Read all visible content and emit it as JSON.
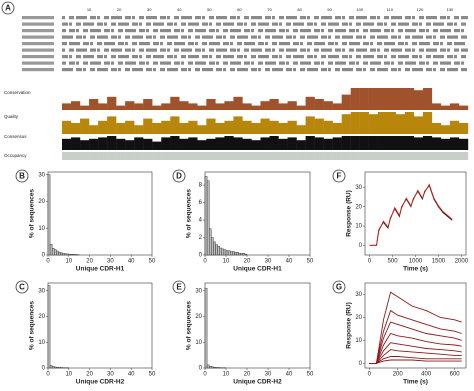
{
  "chart_data": [
    {
      "type": "track",
      "label": "A",
      "xlim": [
        1,
        136
      ],
      "xticks": [
        10,
        20,
        30,
        40,
        50,
        60,
        70,
        80,
        90,
        100,
        110,
        120,
        130
      ],
      "ylim": [
        0,
        10
      ],
      "tracks": [
        {
          "name": "Conservation",
          "color": "#a0522d",
          "values": [
            3,
            4,
            2,
            5,
            3,
            6,
            2,
            4,
            3,
            5,
            2,
            3,
            6,
            4,
            3,
            2,
            5,
            3,
            4,
            6,
            3,
            2,
            4,
            5,
            3,
            4,
            2,
            6,
            5,
            4,
            3,
            7,
            10,
            10,
            10,
            10,
            10,
            10,
            10,
            9,
            10,
            3,
            2,
            3,
            2
          ]
        },
        {
          "name": "Quality",
          "color": "#b8860b",
          "values": [
            6,
            5,
            7,
            4,
            6,
            8,
            5,
            6,
            4,
            7,
            5,
            6,
            8,
            5,
            6,
            4,
            7,
            5,
            6,
            8,
            6,
            5,
            7,
            6,
            5,
            6,
            4,
            8,
            7,
            6,
            5,
            9,
            10,
            10,
            9,
            10,
            10,
            9,
            10,
            8,
            10,
            5,
            4,
            6,
            5
          ]
        },
        {
          "name": "Consensus",
          "color": "#111111",
          "values": [
            8,
            9,
            7,
            8,
            9,
            10,
            8,
            7,
            9,
            8,
            6,
            9,
            10,
            8,
            9,
            7,
            8,
            9,
            10,
            9,
            8,
            7,
            9,
            10,
            8,
            9,
            7,
            10,
            9,
            8,
            9,
            10,
            10,
            10,
            10,
            10,
            10,
            10,
            10,
            9,
            10,
            9,
            8,
            9,
            8
          ]
        },
        {
          "name": "Occupancy",
          "color": "#c8cfc8",
          "values": [
            10,
            10,
            10,
            10,
            10,
            10,
            10,
            10,
            10,
            10,
            10,
            10,
            10,
            10,
            10,
            10,
            10,
            10,
            10,
            10,
            10,
            10,
            10,
            10,
            10,
            10,
            10,
            10,
            10,
            10,
            10,
            10,
            10,
            10,
            10,
            10,
            10,
            10,
            10,
            10,
            10,
            10,
            10,
            10,
            10
          ]
        }
      ]
    },
    {
      "type": "histogram",
      "label": "B",
      "xlabel": "Unique CDR-H1",
      "ylabel": "% of sequences",
      "color": "#bdbdbd",
      "bins": [
        0,
        1,
        2,
        3,
        4,
        5,
        6,
        7,
        8,
        9,
        10,
        11,
        12,
        13,
        14,
        15
      ],
      "values": [
        30,
        4,
        2.5,
        2,
        1.5,
        1,
        0.8,
        0.6,
        0.5,
        0.4,
        0.3,
        0.3,
        0.2,
        0.2,
        0.1
      ],
      "xlim": [
        0,
        50
      ],
      "xticks": [
        0,
        10,
        20,
        30,
        40,
        50
      ],
      "ylim": [
        0,
        31
      ],
      "yticks": [
        0,
        10,
        20,
        30
      ]
    },
    {
      "type": "histogram",
      "label": "C",
      "xlabel": "Unique CDR-H2",
      "ylabel": "% of sequences",
      "color": "#bdbdbd",
      "bins": [
        0,
        1,
        2,
        3,
        4,
        5,
        6,
        7,
        8,
        9,
        10
      ],
      "values": [
        32,
        1,
        0.6,
        0.4,
        0.3,
        0.2,
        0.2,
        0.1,
        0.1,
        0.1
      ],
      "xlim": [
        0,
        50
      ],
      "xticks": [
        0,
        10,
        20,
        30,
        40,
        50
      ],
      "ylim": [
        0,
        33
      ],
      "yticks": [
        0,
        10,
        20,
        30
      ]
    },
    {
      "type": "histogram",
      "label": "D",
      "xlabel": "Unique CDR-H1",
      "ylabel": "% of sequences",
      "color": "#bdbdbd",
      "bins": [
        0,
        1,
        2,
        3,
        4,
        5,
        6,
        7,
        8,
        9,
        10,
        11,
        12,
        13,
        14,
        15,
        16,
        17,
        18,
        19,
        20
      ],
      "values": [
        9,
        8.5,
        3,
        2,
        1.5,
        1.2,
        1,
        0.8,
        0.7,
        0.6,
        0.5,
        0.5,
        0.4,
        0.4,
        0.3,
        0.3,
        0.2,
        0.2,
        0.2,
        0.1
      ],
      "xlim": [
        0,
        50
      ],
      "xticks": [
        0,
        10,
        20,
        30,
        40,
        50
      ],
      "ylim": [
        0,
        9.5
      ],
      "yticks": [
        0,
        2,
        4,
        6,
        8
      ]
    },
    {
      "type": "histogram",
      "label": "E",
      "xlabel": "Unique CDR-H2",
      "ylabel": "% of sequences",
      "color": "#bdbdbd",
      "bins": [
        0,
        1,
        2,
        3,
        4,
        5,
        6,
        7,
        8,
        9,
        10
      ],
      "values": [
        31,
        1.2,
        0.7,
        0.5,
        0.3,
        0.2,
        0.2,
        0.1,
        0.1,
        0.1
      ],
      "xlim": [
        0,
        50
      ],
      "xticks": [
        0,
        10,
        20,
        30,
        40,
        50
      ],
      "ylim": [
        0,
        33
      ],
      "yticks": [
        0,
        10,
        20,
        30
      ]
    },
    {
      "type": "line",
      "label": "F",
      "xlabel": "Time (s)",
      "ylabel": "Response (RU)",
      "x": [
        0,
        150,
        200,
        300,
        400,
        450,
        550,
        650,
        700,
        800,
        900,
        950,
        1050,
        1150,
        1200,
        1300,
        1400,
        1500,
        1600,
        1700,
        1800
      ],
      "series": [
        {
          "color": "#111111",
          "values": [
            0,
            0,
            8,
            12,
            9,
            14,
            19,
            15,
            20,
            24,
            20,
            24,
            28,
            24,
            28,
            31,
            24,
            20,
            17,
            15,
            13
          ]
        },
        {
          "color": "#d62020",
          "values": [
            0,
            0,
            7.5,
            12.5,
            9.5,
            13.5,
            19.5,
            15.5,
            19.5,
            24.5,
            20.5,
            23.5,
            28.5,
            24.5,
            27.5,
            31.5,
            24.5,
            20.5,
            17.5,
            15.5,
            13.5
          ]
        }
      ],
      "xlim": [
        -100,
        2100
      ],
      "xticks": [
        0,
        500,
        1000,
        1500,
        2000
      ],
      "ylim": [
        -5,
        38
      ],
      "yticks": [
        0,
        10,
        20,
        30
      ]
    },
    {
      "type": "line",
      "label": "G",
      "xlabel": "Time (s)",
      "ylabel": "Response (RU)",
      "x": [
        0,
        50,
        100,
        150,
        200,
        300,
        400,
        500,
        600,
        650
      ],
      "series": [
        {
          "color": "#8b1a1a",
          "values": [
            0,
            0,
            19,
            31,
            29,
            25,
            23,
            20,
            19,
            18
          ]
        },
        {
          "color": "#8b1a1a",
          "values": [
            0,
            0,
            14,
            23,
            21,
            19,
            17,
            15,
            14,
            13
          ]
        },
        {
          "color": "#8b1a1a",
          "values": [
            0,
            0,
            11,
            18,
            17,
            15,
            13,
            12,
            11,
            10
          ]
        },
        {
          "color": "#8b1a1a",
          "values": [
            0,
            0,
            8,
            13,
            12,
            11,
            9.5,
            8.5,
            8,
            7.5
          ]
        },
        {
          "color": "#8b1a1a",
          "values": [
            0,
            0,
            5.5,
            9,
            8.5,
            7.5,
            6.5,
            6,
            5.5,
            5
          ]
        },
        {
          "color": "#8b1a1a",
          "values": [
            0,
            0,
            3.5,
            6,
            5.5,
            5,
            4.5,
            4,
            3.5,
            3.5
          ]
        },
        {
          "color": "#8b1a1a",
          "values": [
            0,
            0,
            2,
            3,
            3,
            2.5,
            2,
            2,
            2,
            2
          ]
        },
        {
          "color": "#8b1a1a",
          "values": [
            0,
            0,
            1,
            1.5,
            1.5,
            1.5,
            1,
            1,
            1,
            1
          ]
        }
      ],
      "xlim": [
        -30,
        680
      ],
      "xticks": [
        0,
        200,
        400,
        600
      ],
      "ylim": [
        -2,
        35
      ],
      "yticks": [
        0,
        10,
        20,
        30
      ]
    }
  ]
}
